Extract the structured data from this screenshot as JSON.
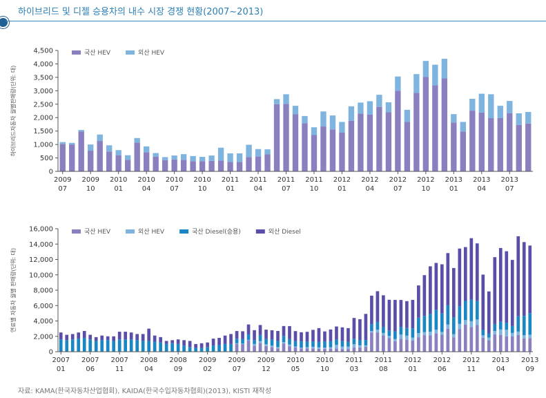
{
  "title": "하이브리드 및 디젤 승용차의 내수 시장 경쟁 현황(2007~2013)",
  "source": "자료: KAMA(한국자동차산업협회), KAIDA(한국수입자동차협회)(2013), KISTI 재작성",
  "colors": {
    "domestic_hev": "#8a80c0",
    "import_hev": "#7fb4df",
    "domestic_diesel": "#1b86c4",
    "import_diesel": "#5a4fa8",
    "title": "#2b7fb5",
    "rule": "#3a86bb"
  },
  "chart_data": [
    {
      "type": "bar",
      "stacked": true,
      "ylabel": "하이브리드자동차 월별판매량(단위: 대)",
      "ylim": [
        0,
        4500
      ],
      "yticks": [
        0,
        500,
        1000,
        1500,
        2000,
        2500,
        3000,
        3500,
        4000,
        4500
      ],
      "ytick_labels": [
        "0",
        "500",
        "1,000",
        "1,500",
        "2,000",
        "2,500",
        "3,000",
        "3,500",
        "4,000",
        "4,500"
      ],
      "legend_position": "top-left",
      "x_tick_labels": [
        {
          "index": 0,
          "year": "2009",
          "month": "07"
        },
        {
          "index": 3,
          "year": "2009",
          "month": "10"
        },
        {
          "index": 6,
          "year": "2010",
          "month": "01"
        },
        {
          "index": 9,
          "year": "2010",
          "month": "04"
        },
        {
          "index": 12,
          "year": "2010",
          "month": "07"
        },
        {
          "index": 15,
          "year": "2010",
          "month": "10"
        },
        {
          "index": 18,
          "year": "2011",
          "month": "01"
        },
        {
          "index": 21,
          "year": "2011",
          "month": "04"
        },
        {
          "index": 24,
          "year": "2011",
          "month": "07"
        },
        {
          "index": 27,
          "year": "2011",
          "month": "10"
        },
        {
          "index": 30,
          "year": "2012",
          "month": "01"
        },
        {
          "index": 33,
          "year": "2012",
          "month": "04"
        },
        {
          "index": 36,
          "year": "2012",
          "month": "07"
        },
        {
          "index": 39,
          "year": "2012",
          "month": "10"
        },
        {
          "index": 42,
          "year": "2013",
          "month": "01"
        },
        {
          "index": 45,
          "year": "2013",
          "month": "04"
        },
        {
          "index": 48,
          "year": "2013",
          "month": "07"
        }
      ],
      "series": [
        {
          "name": "국산 HEV",
          "color": "#8a80c0",
          "values": [
            1020,
            1000,
            1480,
            770,
            1130,
            740,
            600,
            430,
            1070,
            710,
            540,
            420,
            440,
            430,
            380,
            380,
            390,
            400,
            350,
            350,
            530,
            550,
            630,
            2500,
            2510,
            2130,
            1790,
            1350,
            1670,
            1560,
            1440,
            1880,
            2150,
            2110,
            2400,
            2200,
            3000,
            1840,
            2920,
            3510,
            3200,
            3460,
            1820,
            1480,
            2260,
            2190,
            1980,
            1980,
            2160,
            1730,
            1780
          ]
        },
        {
          "name": "외산 HEV",
          "color": "#7fb4df",
          "values": [
            70,
            60,
            60,
            230,
            240,
            230,
            190,
            170,
            170,
            220,
            140,
            110,
            150,
            210,
            190,
            160,
            200,
            480,
            320,
            320,
            460,
            280,
            190,
            190,
            360,
            310,
            270,
            290,
            560,
            520,
            400,
            540,
            410,
            500,
            450,
            370,
            530,
            450,
            700,
            600,
            770,
            730,
            310,
            360,
            440,
            700,
            890,
            460,
            460,
            430,
            430
          ]
        }
      ]
    },
    {
      "type": "bar",
      "stacked": true,
      "ylabel": "연료별 자동차 월별 판매량(단위: 대)",
      "ylim": [
        0,
        16000
      ],
      "yticks": [
        0,
        2000,
        4000,
        6000,
        8000,
        10000,
        12000,
        14000,
        16000
      ],
      "ytick_labels": [
        "0",
        "2,000",
        "4,000",
        "6,000",
        "8,000",
        "10,000",
        "12,000",
        "14,000",
        "16,000"
      ],
      "legend_position": "top-left",
      "x_tick_labels": [
        {
          "index": 0,
          "year": "2007",
          "month": "01"
        },
        {
          "index": 5,
          "year": "2007",
          "month": "06"
        },
        {
          "index": 10,
          "year": "2007",
          "month": "11"
        },
        {
          "index": 15,
          "year": "2008",
          "month": "04"
        },
        {
          "index": 20,
          "year": "2008",
          "month": "09"
        },
        {
          "index": 25,
          "year": "2009",
          "month": "02"
        },
        {
          "index": 30,
          "year": "2009",
          "month": "07"
        },
        {
          "index": 35,
          "year": "2009",
          "month": "12"
        },
        {
          "index": 40,
          "year": "2010",
          "month": "05"
        },
        {
          "index": 45,
          "year": "2010",
          "month": "10"
        },
        {
          "index": 50,
          "year": "2011",
          "month": "03"
        },
        {
          "index": 55,
          "year": "2011",
          "month": "08"
        },
        {
          "index": 60,
          "year": "2012",
          "month": "01"
        },
        {
          "index": 65,
          "year": "2012",
          "month": "06"
        },
        {
          "index": 70,
          "year": "2012",
          "month": "11"
        },
        {
          "index": 75,
          "year": "2013",
          "month": "04"
        },
        {
          "index": 80,
          "year": "2013",
          "month": "09"
        }
      ],
      "series": [
        {
          "name": "국산 HEV",
          "color": "#8a80c0",
          "values": [
            0,
            0,
            0,
            0,
            0,
            0,
            0,
            0,
            0,
            0,
            0,
            0,
            0,
            0,
            0,
            0,
            0,
            0,
            0,
            0,
            0,
            0,
            0,
            0,
            0,
            0,
            0,
            0,
            0,
            0,
            1020,
            1000,
            1480,
            770,
            1130,
            740,
            600,
            430,
            1070,
            710,
            540,
            420,
            440,
            430,
            380,
            380,
            390,
            400,
            350,
            350,
            530,
            550,
            630,
            2500,
            2510,
            2130,
            1790,
            1350,
            1670,
            1560,
            1440,
            1880,
            2150,
            2110,
            2400,
            2200,
            3000,
            1840,
            2920,
            3510,
            3200,
            3460,
            1820,
            1480,
            2260,
            2190,
            1980,
            1980,
            2160,
            1730,
            1780
          ]
        },
        {
          "name": "외산 HEV",
          "color": "#7fb4df",
          "values": [
            0,
            0,
            0,
            0,
            0,
            0,
            0,
            0,
            0,
            0,
            0,
            0,
            0,
            0,
            0,
            0,
            0,
            0,
            0,
            0,
            0,
            0,
            0,
            0,
            0,
            0,
            0,
            0,
            0,
            0,
            70,
            60,
            60,
            230,
            240,
            230,
            190,
            170,
            170,
            220,
            140,
            110,
            150,
            210,
            190,
            160,
            200,
            480,
            320,
            320,
            460,
            280,
            190,
            190,
            360,
            310,
            270,
            290,
            560,
            520,
            400,
            540,
            410,
            500,
            450,
            370,
            530,
            450,
            700,
            600,
            770,
            730,
            310,
            360,
            440,
            700,
            890,
            460,
            460,
            430,
            430
          ]
        },
        {
          "name": "국산 Diesel(승용)",
          "color": "#1b86c4",
          "values": [
            1600,
            1500,
            1600,
            1700,
            1800,
            1600,
            1400,
            1500,
            1500,
            1400,
            1600,
            1600,
            1600,
            1500,
            1400,
            1400,
            1300,
            1200,
            1000,
            1100,
            1000,
            800,
            600,
            500,
            500,
            600,
            800,
            900,
            1000,
            1000,
            600,
            600,
            700,
            500,
            800,
            700,
            800,
            800,
            800,
            700,
            700,
            800,
            700,
            700,
            700,
            800,
            800,
            700,
            700,
            600,
            700,
            700,
            700,
            900,
            1000,
            800,
            700,
            1000,
            1000,
            1000,
            1200,
            2000,
            2100,
            2300,
            2600,
            2400,
            2500,
            2200,
            2300,
            2500,
            2800,
            2400,
            700,
            500,
            900,
            1000,
            900,
            900,
            2000,
            2500,
            2800
          ]
        },
        {
          "name": "외산 Diesel",
          "color": "#5a4fa8",
          "values": [
            900,
            700,
            700,
            800,
            900,
            600,
            500,
            600,
            500,
            600,
            1000,
            1000,
            900,
            800,
            900,
            1600,
            800,
            700,
            400,
            400,
            600,
            700,
            800,
            500,
            600,
            600,
            900,
            900,
            1100,
            1300,
            1000,
            1000,
            1300,
            1300,
            1300,
            1200,
            1200,
            1300,
            1300,
            1700,
            1300,
            1200,
            1300,
            1500,
            1800,
            1300,
            1500,
            1700,
            1800,
            1800,
            2700,
            2700,
            3400,
            3700,
            4000,
            4100,
            4000,
            4100,
            3500,
            3500,
            3700,
            4200,
            5300,
            6200,
            6100,
            6400,
            6800,
            6400,
            7500,
            7000,
            8000,
            7500,
            7200,
            5500,
            8700,
            9600,
            9300,
            8600,
            10400,
            9600,
            8800
          ]
        }
      ]
    }
  ]
}
